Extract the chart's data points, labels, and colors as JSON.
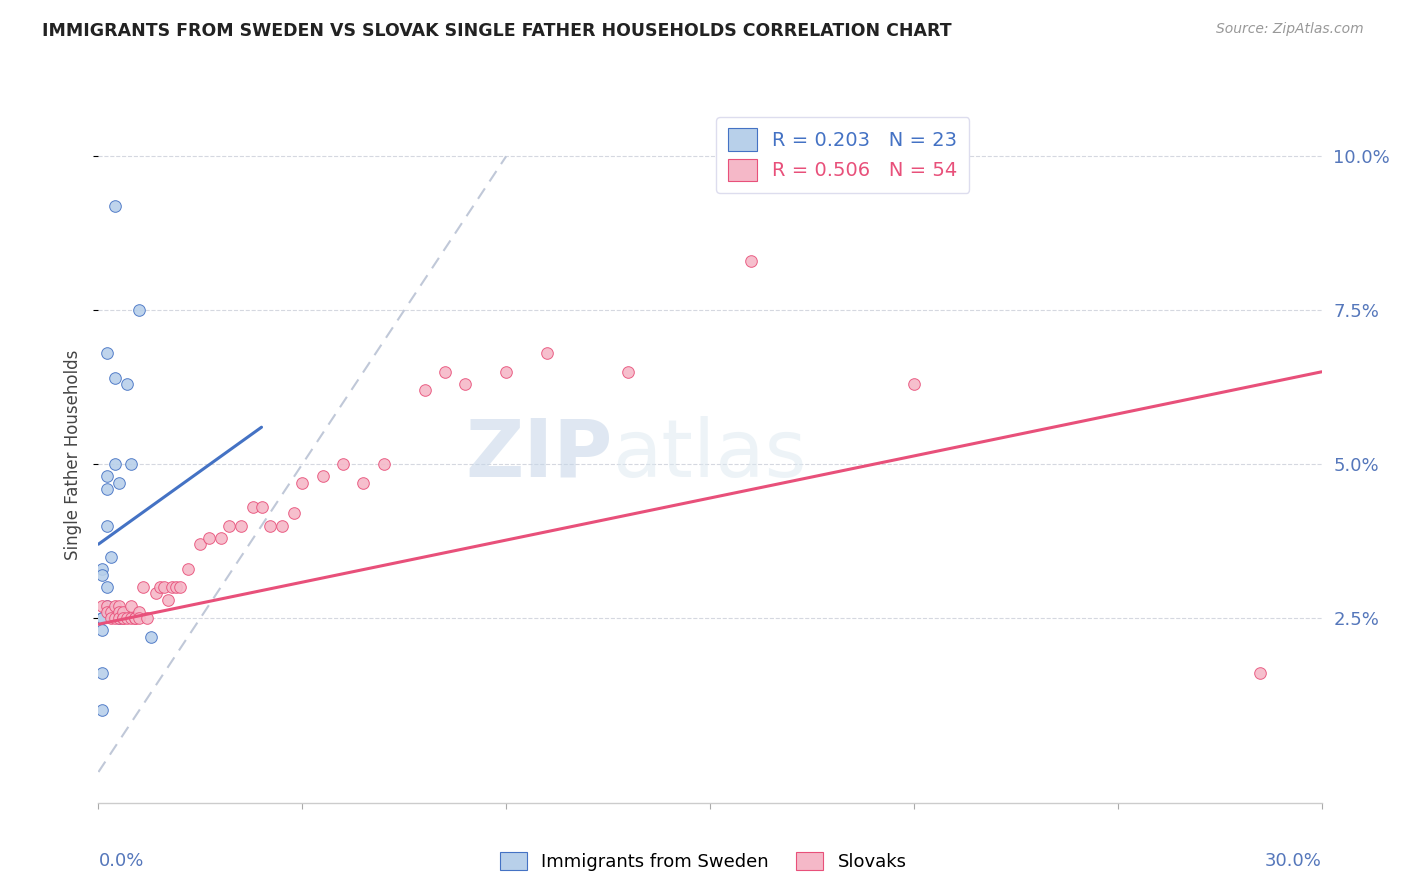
{
  "title": "IMMIGRANTS FROM SWEDEN VS SLOVAK SINGLE FATHER HOUSEHOLDS CORRELATION CHART",
  "source": "Source: ZipAtlas.com",
  "ylabel": "Single Father Households",
  "ytick_values": [
    0.025,
    0.05,
    0.075,
    0.1
  ],
  "xmin": 0.0,
  "xmax": 0.3,
  "ymin": -0.005,
  "ymax": 0.108,
  "legend_sweden": "R = 0.203   N = 23",
  "legend_slovak": "R = 0.506   N = 54",
  "color_sweden": "#b8d0ea",
  "color_slovak": "#f5b8c8",
  "color_sweden_line": "#4472c4",
  "color_slovak_line": "#e8507a",
  "color_diag_line": "#c0c8d8",
  "watermark_zip": "ZIP",
  "watermark_atlas": "atlas",
  "sweden_scatter_x": [
    0.004,
    0.01,
    0.002,
    0.004,
    0.007,
    0.008,
    0.002,
    0.004,
    0.005,
    0.002,
    0.002,
    0.003,
    0.001,
    0.001,
    0.002,
    0.002,
    0.005,
    0.001,
    0.001,
    0.001,
    0.001,
    0.013,
    0.001
  ],
  "sweden_scatter_y": [
    0.092,
    0.075,
    0.068,
    0.064,
    0.063,
    0.05,
    0.048,
    0.05,
    0.047,
    0.046,
    0.04,
    0.035,
    0.033,
    0.032,
    0.03,
    0.027,
    0.025,
    0.025,
    0.025,
    0.023,
    0.016,
    0.022,
    0.01
  ],
  "slovak_scatter_x": [
    0.001,
    0.002,
    0.002,
    0.003,
    0.003,
    0.004,
    0.004,
    0.005,
    0.005,
    0.005,
    0.006,
    0.006,
    0.006,
    0.007,
    0.008,
    0.008,
    0.009,
    0.009,
    0.01,
    0.01,
    0.011,
    0.012,
    0.014,
    0.015,
    0.016,
    0.017,
    0.018,
    0.019,
    0.02,
    0.022,
    0.025,
    0.027,
    0.03,
    0.032,
    0.035,
    0.038,
    0.04,
    0.042,
    0.045,
    0.048,
    0.05,
    0.055,
    0.06,
    0.065,
    0.07,
    0.08,
    0.085,
    0.09,
    0.1,
    0.11,
    0.13,
    0.16,
    0.2,
    0.285
  ],
  "slovak_scatter_y": [
    0.027,
    0.027,
    0.026,
    0.026,
    0.025,
    0.027,
    0.025,
    0.027,
    0.026,
    0.025,
    0.025,
    0.026,
    0.025,
    0.025,
    0.027,
    0.025,
    0.025,
    0.025,
    0.026,
    0.025,
    0.03,
    0.025,
    0.029,
    0.03,
    0.03,
    0.028,
    0.03,
    0.03,
    0.03,
    0.033,
    0.037,
    0.038,
    0.038,
    0.04,
    0.04,
    0.043,
    0.043,
    0.04,
    0.04,
    0.042,
    0.047,
    0.048,
    0.05,
    0.047,
    0.05,
    0.062,
    0.065,
    0.063,
    0.065,
    0.068,
    0.065,
    0.083,
    0.063,
    0.016
  ],
  "sweden_line_x": [
    0.0,
    0.04
  ],
  "sweden_line_y": [
    0.037,
    0.056
  ],
  "slovak_line_x": [
    0.0,
    0.3
  ],
  "slovak_line_y": [
    0.024,
    0.065
  ],
  "diag_line_x": [
    0.0,
    0.1
  ],
  "diag_line_y": [
    0.0,
    0.1
  ]
}
